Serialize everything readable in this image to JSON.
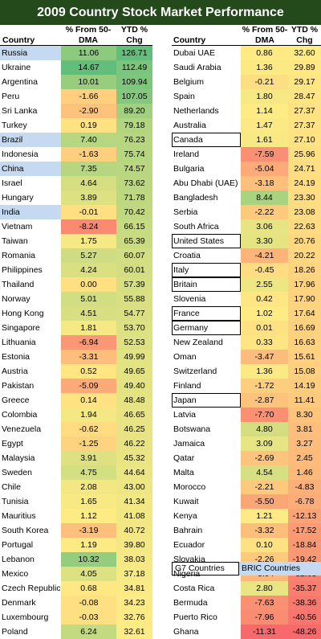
{
  "title": "2009 Country Stock Market Performance",
  "headers": {
    "country": "Country",
    "dma": "% From 50-\nDMA",
    "ytd": "YTD %\nChg"
  },
  "legend": {
    "g7": "G7 Countries",
    "bric": "BRIC Countries"
  },
  "chart_data": {
    "type": "table",
    "columns": [
      "Country",
      "% From 50-DMA",
      "YTD % Chg"
    ],
    "left": [
      {
        "country": "Russia",
        "dma": 11.06,
        "ytd": 126.71,
        "group": "BRIC"
      },
      {
        "country": "Ukraine",
        "dma": 14.67,
        "ytd": 112.49
      },
      {
        "country": "Argentina",
        "dma": 10.01,
        "ytd": 109.94
      },
      {
        "country": "Peru",
        "dma": -1.66,
        "ytd": 107.05
      },
      {
        "country": "Sri Lanka",
        "dma": -2.9,
        "ytd": 89.2
      },
      {
        "country": "Turkey",
        "dma": 0.19,
        "ytd": 79.18
      },
      {
        "country": "Brazil",
        "dma": 7.4,
        "ytd": 76.23,
        "group": "BRIC"
      },
      {
        "country": "Indonesia",
        "dma": -1.63,
        "ytd": 75.74
      },
      {
        "country": "China",
        "dma": 7.35,
        "ytd": 74.57,
        "group": "BRIC"
      },
      {
        "country": "Israel",
        "dma": 4.64,
        "ytd": 73.62
      },
      {
        "country": "Hungary",
        "dma": 3.89,
        "ytd": 71.78
      },
      {
        "country": "India",
        "dma": -0.01,
        "ytd": 70.42,
        "group": "BRIC"
      },
      {
        "country": "Vietnam",
        "dma": -8.24,
        "ytd": 66.15
      },
      {
        "country": "Taiwan",
        "dma": 1.75,
        "ytd": 65.39
      },
      {
        "country": "Romania",
        "dma": 5.27,
        "ytd": 60.07
      },
      {
        "country": "Philippines",
        "dma": 4.24,
        "ytd": 60.01
      },
      {
        "country": "Thailand",
        "dma": 0.0,
        "ytd": 57.39
      },
      {
        "country": "Norway",
        "dma": 5.01,
        "ytd": 55.88
      },
      {
        "country": "Hong Kong",
        "dma": 4.51,
        "ytd": 54.77
      },
      {
        "country": "Singapore",
        "dma": 1.81,
        "ytd": 53.7
      },
      {
        "country": "Lithuania",
        "dma": -6.94,
        "ytd": 52.53
      },
      {
        "country": "Estonia",
        "dma": -3.31,
        "ytd": 49.99
      },
      {
        "country": "Austria",
        "dma": 0.52,
        "ytd": 49.65
      },
      {
        "country": "Pakistan",
        "dma": -5.09,
        "ytd": 49.4
      },
      {
        "country": "Greece",
        "dma": 0.14,
        "ytd": 48.48
      },
      {
        "country": "Colombia",
        "dma": 1.94,
        "ytd": 46.65
      },
      {
        "country": "Venezuela",
        "dma": -0.62,
        "ytd": 46.25
      },
      {
        "country": "Egypt",
        "dma": -1.25,
        "ytd": 46.22
      },
      {
        "country": "Malaysia",
        "dma": 3.91,
        "ytd": 45.32
      },
      {
        "country": "Sweden",
        "dma": 4.75,
        "ytd": 44.64
      },
      {
        "country": "Chile",
        "dma": 2.08,
        "ytd": 43.0
      },
      {
        "country": "Tunisia",
        "dma": 1.65,
        "ytd": 41.34
      },
      {
        "country": "Mauritius",
        "dma": 1.12,
        "ytd": 41.08
      },
      {
        "country": "South Korea",
        "dma": -3.19,
        "ytd": 40.72
      },
      {
        "country": "Portugal",
        "dma": 1.19,
        "ytd": 39.8
      },
      {
        "country": "Lebanon",
        "dma": 10.32,
        "ytd": 38.03
      },
      {
        "country": "Mexico",
        "dma": 4.05,
        "ytd": 37.18
      },
      {
        "country": "Czech Republic",
        "dma": 0.68,
        "ytd": 34.81
      },
      {
        "country": "Denmark",
        "dma": -0.08,
        "ytd": 34.23
      },
      {
        "country": "Luxembourg",
        "dma": -0.03,
        "ytd": 32.76
      },
      {
        "country": "Poland",
        "dma": 6.24,
        "ytd": 32.61
      }
    ],
    "right": [
      {
        "country": "Dubai UAE",
        "dma": 0.86,
        "ytd": 32.6
      },
      {
        "country": "Saudi Arabia",
        "dma": 1.36,
        "ytd": 29.89
      },
      {
        "country": "Belgium",
        "dma": -0.21,
        "ytd": 29.17
      },
      {
        "country": "Spain",
        "dma": 1.8,
        "ytd": 28.47
      },
      {
        "country": "Netherlands",
        "dma": 1.14,
        "ytd": 27.37
      },
      {
        "country": "Australia",
        "dma": 1.47,
        "ytd": 27.37
      },
      {
        "country": "Canada",
        "dma": 1.61,
        "ytd": 27.1,
        "group": "G7"
      },
      {
        "country": "Ireland",
        "dma": -7.59,
        "ytd": 25.96
      },
      {
        "country": "Bulgaria",
        "dma": -5.04,
        "ytd": 24.71
      },
      {
        "country": "Abu Dhabi (UAE)",
        "dma": -3.18,
        "ytd": 24.19
      },
      {
        "country": "Bangladesh",
        "dma": 8.44,
        "ytd": 23.3
      },
      {
        "country": "Serbia",
        "dma": -2.22,
        "ytd": 23.08
      },
      {
        "country": "South Africa",
        "dma": 3.06,
        "ytd": 22.63
      },
      {
        "country": "United States",
        "dma": 3.3,
        "ytd": 20.76,
        "group": "G7"
      },
      {
        "country": "Croatia",
        "dma": -4.21,
        "ytd": 20.22
      },
      {
        "country": "Italy",
        "dma": -0.45,
        "ytd": 18.26,
        "group": "G7"
      },
      {
        "country": "Britain",
        "dma": 2.55,
        "ytd": 17.96,
        "group": "G7"
      },
      {
        "country": "Slovenia",
        "dma": 0.42,
        "ytd": 17.9
      },
      {
        "country": "France",
        "dma": 1.02,
        "ytd": 17.64,
        "group": "G7"
      },
      {
        "country": "Germany",
        "dma": 0.01,
        "ytd": 16.69,
        "group": "G7"
      },
      {
        "country": "New Zealand",
        "dma": 0.33,
        "ytd": 16.63
      },
      {
        "country": "Oman",
        "dma": -3.47,
        "ytd": 15.61
      },
      {
        "country": "Switzerland",
        "dma": 1.36,
        "ytd": 15.08
      },
      {
        "country": "Finland",
        "dma": -1.72,
        "ytd": 14.19
      },
      {
        "country": "Japan",
        "dma": -2.87,
        "ytd": 11.41,
        "group": "G7"
      },
      {
        "country": "Latvia",
        "dma": -7.7,
        "ytd": 8.3
      },
      {
        "country": "Botswana",
        "dma": 4.8,
        "ytd": 3.81
      },
      {
        "country": "Jamaica",
        "dma": 3.09,
        "ytd": 3.27
      },
      {
        "country": "Qatar",
        "dma": -2.69,
        "ytd": 2.45
      },
      {
        "country": "Malta",
        "dma": 4.54,
        "ytd": 1.46
      },
      {
        "country": "Morocco",
        "dma": -2.21,
        "ytd": -4.83
      },
      {
        "country": "Kuwait",
        "dma": -5.5,
        "ytd": -6.78
      },
      {
        "country": "Kenya",
        "dma": 1.21,
        "ytd": -12.13
      },
      {
        "country": "Bahrain",
        "dma": -3.32,
        "ytd": -17.52
      },
      {
        "country": "Ecuador",
        "dma": 0.1,
        "ytd": -18.84
      },
      {
        "country": "Slovakia",
        "dma": -2.26,
        "ytd": -19.42
      },
      {
        "country": "Nigeria",
        "dma": -3.94,
        "ytd": -32.03
      },
      {
        "country": "Costa Rica",
        "dma": 2.8,
        "ytd": -35.37
      },
      {
        "country": "Bermuda",
        "dma": -7.63,
        "ytd": -38.36
      },
      {
        "country": "Puerto Rico",
        "dma": -7.96,
        "ytd": -40.56
      },
      {
        "country": "Ghana",
        "dma": -11.31,
        "ytd": -48.26
      }
    ]
  }
}
